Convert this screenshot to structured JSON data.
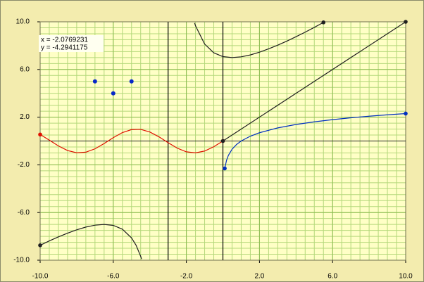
{
  "chart_data": {
    "type": "line",
    "xlim": [
      -10,
      10
    ],
    "ylim": [
      -10,
      10
    ],
    "xticks": [
      {
        "value": -10,
        "label": "-10.0"
      },
      {
        "value": -6,
        "label": "-6.0"
      },
      {
        "value": -2,
        "label": "-2.0"
      },
      {
        "value": 2,
        "label": "2.0"
      },
      {
        "value": 6,
        "label": "6.0"
      },
      {
        "value": 10,
        "label": "10.0"
      }
    ],
    "yticks": [
      {
        "value": -10,
        "label": "-10.0"
      },
      {
        "value": -6,
        "label": "-6.0"
      },
      {
        "value": -2,
        "label": "-2.0"
      },
      {
        "value": 2,
        "label": "2.0"
      },
      {
        "value": 6,
        "label": "6.0"
      },
      {
        "value": 10,
        "label": "10.0"
      }
    ],
    "grid": true,
    "minor_step": 0.5,
    "annotations": [
      "x = -2.0769231",
      "y = -4.2941175"
    ],
    "vlines": [
      -3,
      0
    ],
    "vline_color": "#000000",
    "series": [
      {
        "color": "#e01000",
        "x": [
          -10,
          -9.5,
          -9,
          -8.5,
          -8,
          -7.5,
          -7,
          -6.5,
          -6,
          -5.5,
          -5,
          -4.5,
          -4,
          -3.5,
          -3,
          -2.5,
          -2,
          -1.5,
          -1,
          -0.5,
          0
        ],
        "values": [
          0.544,
          0.075,
          -0.412,
          -0.798,
          -0.989,
          -0.938,
          -0.657,
          -0.215,
          0.279,
          0.706,
          0.959,
          0.978,
          0.757,
          0.351,
          -0.141,
          -0.598,
          -0.909,
          -0.997,
          -0.841,
          -0.479,
          0
        ]
      },
      {
        "color": "#0030c0",
        "x": [
          0.1,
          0.2,
          0.3,
          0.5,
          0.75,
          1,
          1.5,
          2,
          3,
          4,
          5,
          6,
          7,
          8,
          9,
          10
        ],
        "values": [
          -2.303,
          -1.609,
          -1.204,
          -0.693,
          -0.288,
          0,
          0.405,
          0.693,
          1.099,
          1.386,
          1.609,
          1.792,
          1.946,
          2.079,
          2.197,
          2.303
        ]
      },
      {
        "color": "#202020",
        "x": [
          0,
          10
        ],
        "values": [
          0,
          10
        ]
      },
      {
        "color": "#202020",
        "x": [
          -10,
          -9.5,
          -9,
          -8.5,
          -8,
          -7.5,
          -7,
          -6.5,
          -6,
          -5.5,
          -5,
          -4.75,
          -4.5,
          -4.45,
          -3,
          -1.55,
          -1.5,
          -1,
          -0.5,
          0,
          0.5,
          1,
          1.5,
          2,
          2.5,
          3,
          3.5,
          4,
          4.5,
          5,
          5.5
        ],
        "values": [
          -8.75,
          -8.38,
          -8.04,
          -7.73,
          -7.45,
          -7.22,
          -7.06,
          -7.0,
          -7.08,
          -7.4,
          -8.13,
          -8.75,
          -9.67,
          -9.9,
          null,
          9.9,
          9.67,
          8.13,
          7.4,
          7.08,
          7.0,
          7.06,
          7.22,
          7.45,
          7.73,
          8.04,
          8.38,
          8.75,
          9.13,
          9.53,
          9.95
        ]
      }
    ],
    "points": {
      "color": "#0828c8",
      "x": [
        -7,
        -6,
        -5
      ],
      "values": [
        5,
        4,
        5
      ]
    }
  }
}
